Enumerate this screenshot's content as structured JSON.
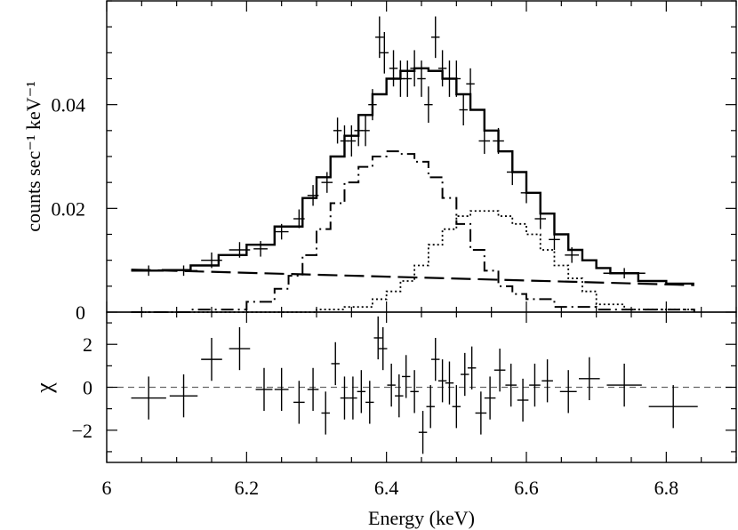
{
  "chart_data": [
    {
      "type": "scatter",
      "panel": "top",
      "title": "",
      "xlabel": "Energy (keV)",
      "ylabel": "counts sec⁻¹ keV⁻¹",
      "xlim": [
        6.0,
        6.9
      ],
      "ylim": [
        0,
        0.06
      ],
      "yticks": [
        0,
        0.02,
        0.04
      ],
      "ytick_labels": [
        "0",
        "0.02",
        "0.04"
      ],
      "grid": false,
      "series": [
        {
          "name": "data",
          "style": "crosses",
          "points": [
            {
              "x": 6.06,
              "xerr": 0.025,
              "y": 0.008,
              "yerr": 0.001
            },
            {
              "x": 6.11,
              "xerr": 0.02,
              "y": 0.008,
              "yerr": 0.001
            },
            {
              "x": 6.15,
              "xerr": 0.015,
              "y": 0.01,
              "yerr": 0.0015
            },
            {
              "x": 6.19,
              "xerr": 0.015,
              "y": 0.012,
              "yerr": 0.0015
            },
            {
              "x": 6.22,
              "xerr": 0.01,
              "y": 0.0122,
              "yerr": 0.0015
            },
            {
              "x": 6.25,
              "xerr": 0.01,
              "y": 0.0155,
              "yerr": 0.0015
            },
            {
              "x": 6.275,
              "xerr": 0.008,
              "y": 0.018,
              "yerr": 0.0018
            },
            {
              "x": 6.295,
              "xerr": 0.008,
              "y": 0.0225,
              "yerr": 0.002
            },
            {
              "x": 6.315,
              "xerr": 0.008,
              "y": 0.025,
              "yerr": 0.002
            },
            {
              "x": 6.33,
              "xerr": 0.006,
              "y": 0.035,
              "yerr": 0.0025
            },
            {
              "x": 6.34,
              "xerr": 0.006,
              "y": 0.033,
              "yerr": 0.003
            },
            {
              "x": 6.35,
              "xerr": 0.006,
              "y": 0.033,
              "yerr": 0.003
            },
            {
              "x": 6.36,
              "xerr": 0.006,
              "y": 0.035,
              "yerr": 0.003
            },
            {
              "x": 6.37,
              "xerr": 0.006,
              "y": 0.035,
              "yerr": 0.003
            },
            {
              "x": 6.38,
              "xerr": 0.006,
              "y": 0.04,
              "yerr": 0.003
            },
            {
              "x": 6.39,
              "xerr": 0.006,
              "y": 0.053,
              "yerr": 0.004
            },
            {
              "x": 6.397,
              "xerr": 0.006,
              "y": 0.05,
              "yerr": 0.004
            },
            {
              "x": 6.41,
              "xerr": 0.006,
              "y": 0.047,
              "yerr": 0.0035
            },
            {
              "x": 6.42,
              "xerr": 0.006,
              "y": 0.045,
              "yerr": 0.0035
            },
            {
              "x": 6.43,
              "xerr": 0.006,
              "y": 0.045,
              "yerr": 0.0035
            },
            {
              "x": 6.44,
              "xerr": 0.006,
              "y": 0.047,
              "yerr": 0.0035
            },
            {
              "x": 6.45,
              "xerr": 0.006,
              "y": 0.045,
              "yerr": 0.0035
            },
            {
              "x": 6.46,
              "xerr": 0.006,
              "y": 0.04,
              "yerr": 0.0035
            },
            {
              "x": 6.47,
              "xerr": 0.006,
              "y": 0.053,
              "yerr": 0.004
            },
            {
              "x": 6.48,
              "xerr": 0.006,
              "y": 0.047,
              "yerr": 0.0035
            },
            {
              "x": 6.49,
              "xerr": 0.006,
              "y": 0.045,
              "yerr": 0.0035
            },
            {
              "x": 6.5,
              "xerr": 0.006,
              "y": 0.045,
              "yerr": 0.0035
            },
            {
              "x": 6.51,
              "xerr": 0.006,
              "y": 0.039,
              "yerr": 0.003
            },
            {
              "x": 6.52,
              "xerr": 0.006,
              "y": 0.044,
              "yerr": 0.003
            },
            {
              "x": 6.54,
              "xerr": 0.008,
              "y": 0.033,
              "yerr": 0.0025
            },
            {
              "x": 6.56,
              "xerr": 0.008,
              "y": 0.033,
              "yerr": 0.0025
            },
            {
              "x": 6.58,
              "xerr": 0.008,
              "y": 0.027,
              "yerr": 0.0025
            },
            {
              "x": 6.6,
              "xerr": 0.008,
              "y": 0.023,
              "yerr": 0.002
            },
            {
              "x": 6.62,
              "xerr": 0.008,
              "y": 0.018,
              "yerr": 0.002
            },
            {
              "x": 6.64,
              "xerr": 0.008,
              "y": 0.014,
              "yerr": 0.002
            },
            {
              "x": 6.665,
              "xerr": 0.01,
              "y": 0.011,
              "yerr": 0.0015
            },
            {
              "x": 6.74,
              "xerr": 0.03,
              "y": 0.0075,
              "yerr": 0.001
            }
          ]
        },
        {
          "name": "total model",
          "style": "solid-step",
          "x": [
            6.035,
            6.08,
            6.12,
            6.16,
            6.2,
            6.24,
            6.28,
            6.3,
            6.32,
            6.34,
            6.36,
            6.38,
            6.4,
            6.42,
            6.44,
            6.46,
            6.48,
            6.5,
            6.52,
            6.54,
            6.56,
            6.58,
            6.6,
            6.62,
            6.64,
            6.66,
            6.68,
            6.7,
            6.72,
            6.76,
            6.8,
            6.84
          ],
          "y": [
            0.008,
            0.0081,
            0.009,
            0.011,
            0.013,
            0.0165,
            0.022,
            0.026,
            0.03,
            0.034,
            0.038,
            0.042,
            0.045,
            0.0465,
            0.047,
            0.0465,
            0.045,
            0.042,
            0.039,
            0.035,
            0.031,
            0.027,
            0.023,
            0.019,
            0.015,
            0.012,
            0.01,
            0.0085,
            0.0075,
            0.006,
            0.0055,
            0.0055
          ]
        },
        {
          "name": "line component 1",
          "style": "dash-dot",
          "x": [
            6.035,
            6.12,
            6.2,
            6.24,
            6.26,
            6.28,
            6.3,
            6.32,
            6.34,
            6.36,
            6.38,
            6.4,
            6.42,
            6.44,
            6.46,
            6.48,
            6.5,
            6.52,
            6.54,
            6.56,
            6.58,
            6.6,
            6.64,
            6.7,
            6.84
          ],
          "y": [
            0.0,
            0.0005,
            0.002,
            0.0045,
            0.007,
            0.011,
            0.016,
            0.021,
            0.025,
            0.028,
            0.03,
            0.031,
            0.0305,
            0.029,
            0.026,
            0.022,
            0.017,
            0.012,
            0.008,
            0.005,
            0.0035,
            0.0025,
            0.001,
            0.0005,
            0.0
          ]
        },
        {
          "name": "line component 2",
          "style": "dotted",
          "x": [
            6.035,
            6.24,
            6.3,
            6.34,
            6.38,
            6.4,
            6.42,
            6.44,
            6.46,
            6.48,
            6.5,
            6.52,
            6.54,
            6.56,
            6.58,
            6.6,
            6.62,
            6.64,
            6.66,
            6.68,
            6.7,
            6.74,
            6.84
          ],
          "y": [
            0.0,
            0.0,
            0.0005,
            0.001,
            0.0025,
            0.004,
            0.006,
            0.009,
            0.013,
            0.016,
            0.0185,
            0.0195,
            0.0195,
            0.0185,
            0.017,
            0.015,
            0.012,
            0.009,
            0.0065,
            0.004,
            0.0015,
            0.0005,
            0.0
          ]
        },
        {
          "name": "continuum",
          "style": "long-dash",
          "x": [
            6.035,
            6.84
          ],
          "y": [
            0.0082,
            0.0052
          ]
        }
      ]
    },
    {
      "type": "scatter",
      "panel": "bottom",
      "title": "",
      "xlabel": "Energy (keV)",
      "ylabel": "χ",
      "xlim": [
        6.0,
        6.9
      ],
      "ylim": [
        -3.5,
        3.5
      ],
      "xticks": [
        6.0,
        6.2,
        6.4,
        6.6,
        6.8
      ],
      "xtick_labels": [
        "6",
        "6.2",
        "6.4",
        "6.6",
        "6.8"
      ],
      "yticks": [
        -2,
        0,
        2
      ],
      "ytick_labels": [
        "−2",
        "0",
        "2"
      ],
      "zero_line": "dashed",
      "series": [
        {
          "name": "residuals",
          "style": "crosses",
          "points": [
            {
              "x": 6.06,
              "xerr": 0.025,
              "y": -0.5,
              "yerr": 1.0
            },
            {
              "x": 6.11,
              "xerr": 0.02,
              "y": -0.4,
              "yerr": 1.0
            },
            {
              "x": 6.15,
              "xerr": 0.015,
              "y": 1.3,
              "yerr": 1.0
            },
            {
              "x": 6.19,
              "xerr": 0.015,
              "y": 1.8,
              "yerr": 1.0
            },
            {
              "x": 6.225,
              "xerr": 0.012,
              "y": -0.1,
              "yerr": 1.0
            },
            {
              "x": 6.25,
              "xerr": 0.01,
              "y": -0.1,
              "yerr": 1.0
            },
            {
              "x": 6.275,
              "xerr": 0.008,
              "y": -0.7,
              "yerr": 1.0
            },
            {
              "x": 6.295,
              "xerr": 0.008,
              "y": -0.1,
              "yerr": 1.0
            },
            {
              "x": 6.313,
              "xerr": 0.006,
              "y": -1.2,
              "yerr": 1.0
            },
            {
              "x": 6.327,
              "xerr": 0.006,
              "y": 1.1,
              "yerr": 1.0
            },
            {
              "x": 6.34,
              "xerr": 0.006,
              "y": -0.5,
              "yerr": 1.0
            },
            {
              "x": 6.352,
              "xerr": 0.006,
              "y": -0.5,
              "yerr": 1.0
            },
            {
              "x": 6.364,
              "xerr": 0.006,
              "y": -0.2,
              "yerr": 1.0
            },
            {
              "x": 6.376,
              "xerr": 0.006,
              "y": -0.7,
              "yerr": 1.0
            },
            {
              "x": 6.388,
              "xerr": 0.006,
              "y": 2.3,
              "yerr": 1.0
            },
            {
              "x": 6.395,
              "xerr": 0.006,
              "y": 1.8,
              "yerr": 1.0
            },
            {
              "x": 6.407,
              "xerr": 0.006,
              "y": 0.1,
              "yerr": 1.0
            },
            {
              "x": 6.418,
              "xerr": 0.006,
              "y": -0.4,
              "yerr": 1.0
            },
            {
              "x": 6.428,
              "xerr": 0.006,
              "y": 0.5,
              "yerr": 1.0
            },
            {
              "x": 6.44,
              "xerr": 0.006,
              "y": -0.2,
              "yerr": 1.0
            },
            {
              "x": 6.452,
              "xerr": 0.006,
              "y": -2.1,
              "yerr": 1.0
            },
            {
              "x": 6.463,
              "xerr": 0.006,
              "y": -0.9,
              "yerr": 1.0
            },
            {
              "x": 6.47,
              "xerr": 0.006,
              "y": 1.3,
              "yerr": 1.0
            },
            {
              "x": 6.48,
              "xerr": 0.006,
              "y": 0.3,
              "yerr": 1.0
            },
            {
              "x": 6.49,
              "xerr": 0.006,
              "y": 0.2,
              "yerr": 1.0
            },
            {
              "x": 6.5,
              "xerr": 0.006,
              "y": -0.9,
              "yerr": 1.0
            },
            {
              "x": 6.512,
              "xerr": 0.006,
              "y": 0.6,
              "yerr": 1.0
            },
            {
              "x": 6.522,
              "xerr": 0.006,
              "y": 0.9,
              "yerr": 1.0
            },
            {
              "x": 6.535,
              "xerr": 0.008,
              "y": -1.2,
              "yerr": 1.0
            },
            {
              "x": 6.548,
              "xerr": 0.008,
              "y": -0.5,
              "yerr": 1.0
            },
            {
              "x": 6.562,
              "xerr": 0.008,
              "y": 0.8,
              "yerr": 1.0
            },
            {
              "x": 6.578,
              "xerr": 0.008,
              "y": 0.1,
              "yerr": 1.0
            },
            {
              "x": 6.595,
              "xerr": 0.008,
              "y": -0.6,
              "yerr": 1.0
            },
            {
              "x": 6.612,
              "xerr": 0.008,
              "y": 0.1,
              "yerr": 1.0
            },
            {
              "x": 6.63,
              "xerr": 0.008,
              "y": 0.3,
              "yerr": 1.0
            },
            {
              "x": 6.66,
              "xerr": 0.012,
              "y": -0.2,
              "yerr": 1.0
            },
            {
              "x": 6.69,
              "xerr": 0.015,
              "y": 0.4,
              "yerr": 1.0
            },
            {
              "x": 6.74,
              "xerr": 0.025,
              "y": 0.1,
              "yerr": 1.0
            },
            {
              "x": 6.81,
              "xerr": 0.035,
              "y": -0.9,
              "yerr": 1.0
            }
          ]
        }
      ]
    }
  ]
}
